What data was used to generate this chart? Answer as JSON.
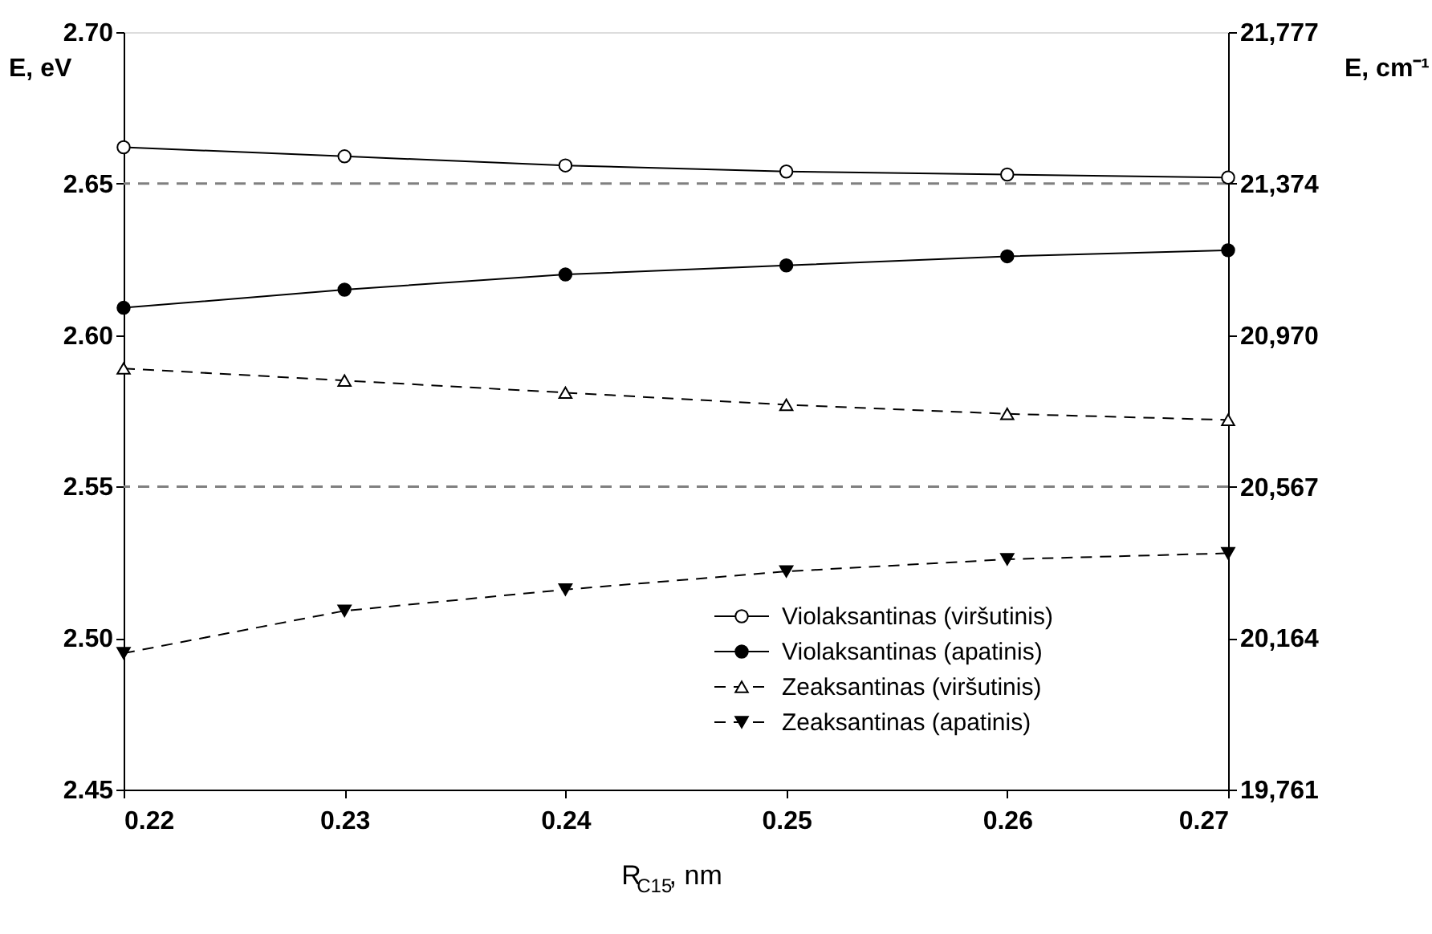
{
  "chart_data": {
    "type": "line",
    "xlabel": "R$_{C15}$, nm",
    "ylabel": "E, eV",
    "y2label": "E, cm⁻¹",
    "x": [
      0.22,
      0.23,
      0.24,
      0.25,
      0.26,
      0.27
    ],
    "xlim": [
      0.22,
      0.27
    ],
    "xticks": [
      {
        "value": 0.22,
        "label": "0.22"
      },
      {
        "value": 0.23,
        "label": "0.23"
      },
      {
        "value": 0.24,
        "label": "0.24"
      },
      {
        "value": 0.25,
        "label": "0.25"
      },
      {
        "value": 0.26,
        "label": "0.26"
      },
      {
        "value": 0.27,
        "label": "0.27"
      }
    ],
    "ylim": [
      2.45,
      2.7
    ],
    "yticks": [
      {
        "value": 2.45,
        "label": "2.45"
      },
      {
        "value": 2.5,
        "label": "2.50"
      },
      {
        "value": 2.55,
        "label": "2.55"
      },
      {
        "value": 2.6,
        "label": "2.60"
      },
      {
        "value": 2.65,
        "label": "2.65"
      },
      {
        "value": 2.7,
        "label": "2.70"
      }
    ],
    "y2lim": [
      19761,
      21777
    ],
    "y2ticks": [
      {
        "value": 19761,
        "label": "19,761"
      },
      {
        "value": 20164,
        "label": "20,164"
      },
      {
        "value": 20567,
        "label": "20,567"
      },
      {
        "value": 20970,
        "label": "20,970"
      },
      {
        "value": 21374,
        "label": "21,374"
      },
      {
        "value": 21777,
        "label": "21,777"
      }
    ],
    "ref_lines": [
      {
        "axis": "y",
        "value": 2.65,
        "color": "#808080",
        "line_style": "dashed"
      },
      {
        "axis": "y",
        "value": 2.55,
        "color": "#808080",
        "line_style": "dashed"
      }
    ],
    "legend": "bottom right",
    "grid": false,
    "series": [
      {
        "name": "Violaksantinas (viršutinis)",
        "color": "#000000",
        "marker": "circle",
        "colors": [
          "#ffffff",
          "#ffffff",
          "#ffffff",
          "#ffffff",
          "#ffffff",
          "#ffffff"
        ],
        "line_style": "solid",
        "values": [
          2.662,
          2.659,
          2.656,
          2.654,
          2.653,
          2.652
        ]
      },
      {
        "name": "Violaksantinas (apatinis)",
        "color": "#000000",
        "marker": "circle",
        "colors": [
          "#000000",
          "#000000",
          "#000000",
          "#000000",
          "#000000",
          "#000000"
        ],
        "line_style": "solid",
        "values": [
          2.609,
          2.615,
          2.62,
          2.623,
          2.626,
          2.628
        ]
      },
      {
        "name": "Zeaksantinas (viršutinis)",
        "color": "#000000",
        "marker": "triangle",
        "colors": [
          "#ffffff",
          "#ffffff",
          "#ffffff",
          "#ffffff",
          "#ffffff",
          "#ffffff"
        ],
        "line_style": "dashed",
        "values": [
          2.589,
          2.585,
          2.581,
          2.577,
          2.574,
          2.572
        ]
      },
      {
        "name": "Zeaksantinas (apatinis)",
        "color": "#000000",
        "marker": "triangle-down",
        "colors": [
          "#000000",
          "#000000",
          "#000000",
          "#000000",
          "#000000",
          "#000000"
        ],
        "line_style": "dashed",
        "values": [
          2.495,
          2.509,
          2.516,
          2.522,
          2.526,
          2.528
        ]
      }
    ]
  }
}
